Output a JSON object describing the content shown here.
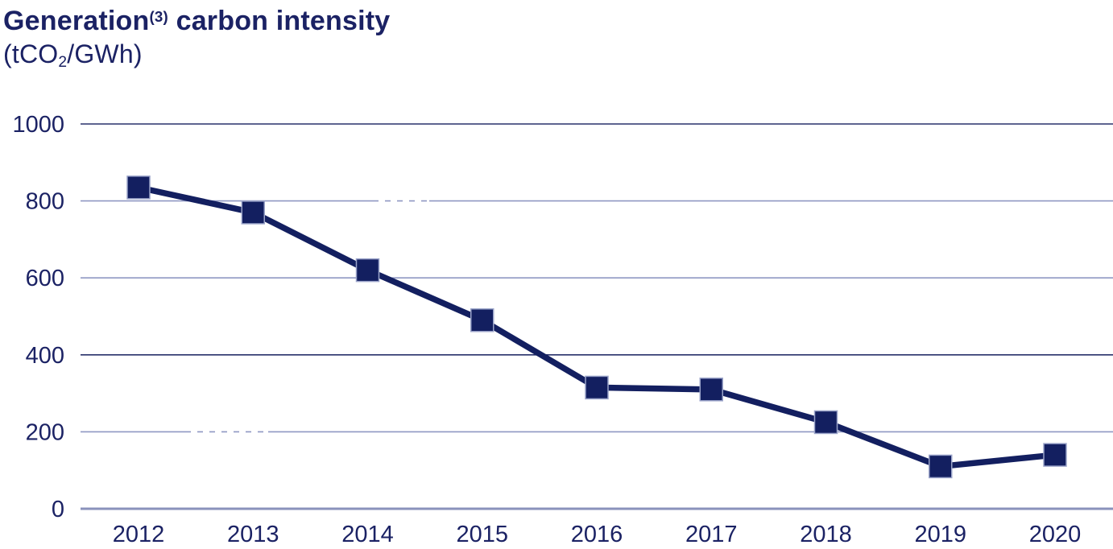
{
  "header": {
    "title": "Generation",
    "title_superscript": "(3)",
    "title_rest": " carbon intensity",
    "unit_prefix": "(tCO",
    "unit_subscript": "2",
    "unit_suffix": "/GWh)"
  },
  "colors": {
    "text": "#1b2264",
    "line": "#131f60",
    "marker_edge": "#9aa3c9",
    "grid_light": "#8f98c3",
    "grid_dark": "#28306b",
    "axis_line": "#8a92bb",
    "background": "#ffffff"
  },
  "chart_data": {
    "type": "line",
    "title": "Generation(3) carbon intensity",
    "subtitle": "(tCO2/GWh)",
    "xlabel": "",
    "ylabel": "",
    "categories": [
      "2012",
      "2013",
      "2014",
      "2015",
      "2016",
      "2017",
      "2018",
      "2019",
      "2020"
    ],
    "series": [
      {
        "name": "Generation carbon intensity",
        "values": [
          835,
          770,
          620,
          490,
          315,
          310,
          225,
          110,
          140
        ]
      }
    ],
    "ylim": [
      0,
      1000
    ],
    "yticks": [
      0,
      200,
      400,
      600,
      800,
      1000
    ],
    "grid": "horizontal",
    "legend": "none",
    "marker": "square",
    "dark_gridlines": [
      1000,
      400
    ]
  }
}
